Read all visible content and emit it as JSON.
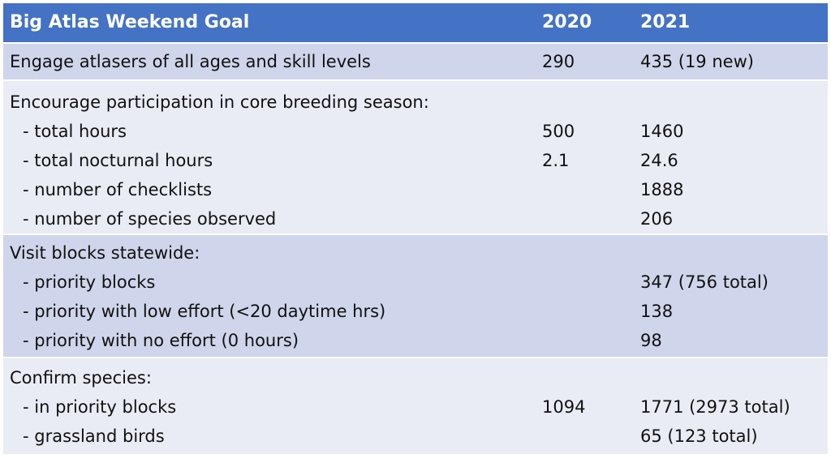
{
  "header": {
    "goal": "Big Atlas Weekend Goal",
    "year1": "2020",
    "year2": "2021"
  },
  "rows": {
    "r0": {
      "label": "Engage atlasers of all ages and skill levels",
      "y2020": "290",
      "y2021": "435 (19 new)"
    },
    "r1": {
      "label": "Encourage participation in core breeding season:",
      "y2020": "",
      "y2021": ""
    },
    "r2": {
      "label": "- total hours",
      "y2020": "500",
      "y2021": "1460"
    },
    "r3": {
      "label": "- total nocturnal hours",
      "y2020": "2.1",
      "y2021": "24.6"
    },
    "r4": {
      "label": "- number of checklists",
      "y2020": "",
      "y2021": "1888"
    },
    "r5": {
      "label": "- number of species observed",
      "y2020": "",
      "y2021": "206"
    },
    "r6": {
      "label": "Visit blocks statewide:",
      "y2020": "",
      "y2021": ""
    },
    "r7": {
      "label": "- priority blocks",
      "y2020": "",
      "y2021": "347 (756 total)"
    },
    "r8": {
      "label": "- priority with low effort (<20 daytime hrs)",
      "y2020": "",
      "y2021": "138"
    },
    "r9": {
      "label": "- priority with no effort (0 hours)",
      "y2020": "",
      "y2021": "98"
    },
    "r10": {
      "label": "Confirm species:",
      "y2020": "",
      "y2021": ""
    },
    "r11": {
      "label": "- in priority blocks",
      "y2020": "1094",
      "y2021": "1771 (2973 total)"
    },
    "r12": {
      "label": "- grassland birds",
      "y2020": "",
      "y2021": "65 (123 total)"
    }
  },
  "colors": {
    "header_bg": "#4472c4",
    "row_dark": "#cfd5ea",
    "row_light": "#e9ebf5"
  }
}
